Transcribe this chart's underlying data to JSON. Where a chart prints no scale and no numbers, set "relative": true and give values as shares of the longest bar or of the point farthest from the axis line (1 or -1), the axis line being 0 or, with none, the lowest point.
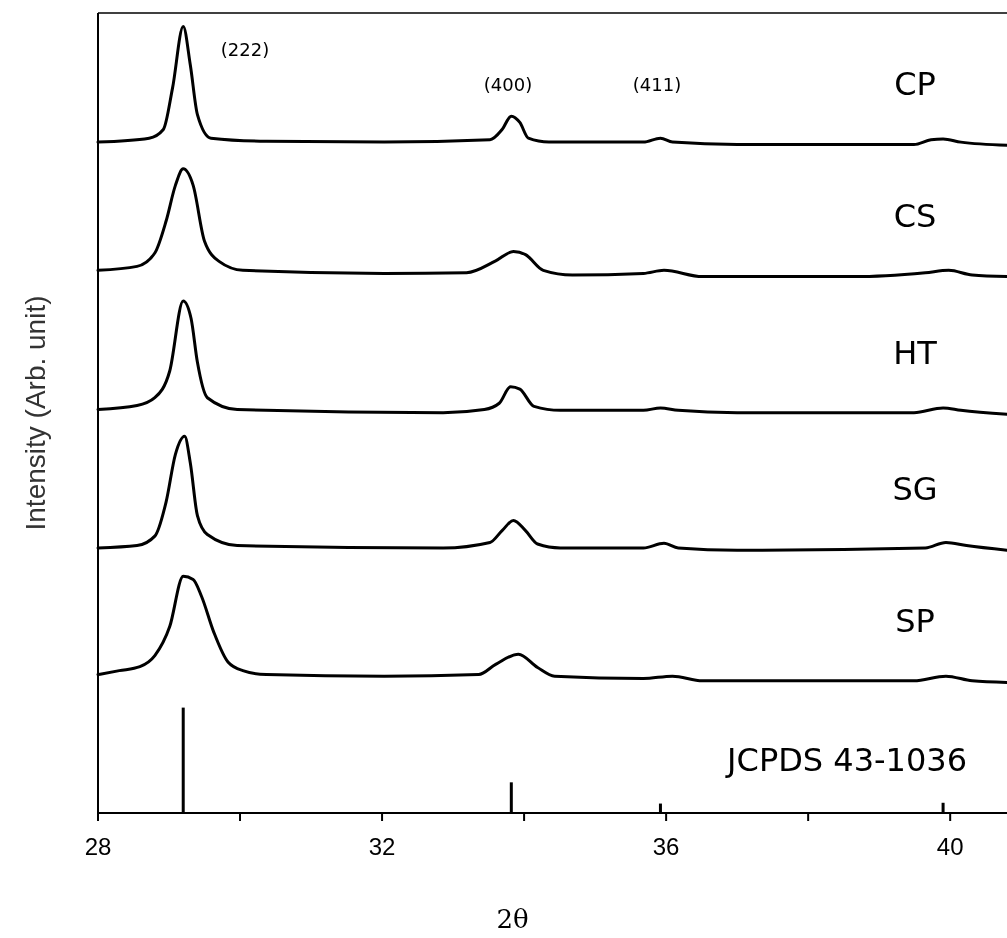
{
  "chart_data": {
    "type": "line",
    "relative": true,
    "xlabel": "2θ",
    "ylabel": "Intensity (Arb. unit)",
    "xlim": [
      28,
      40.8
    ],
    "xticks": [
      28,
      {
        "value": 30,
        "label": null
      },
      32,
      {
        "value": 34,
        "label": null
      },
      36,
      {
        "value": 38,
        "label": null
      },
      40
    ],
    "grid": false,
    "marker": "none",
    "line_style": "solid",
    "annotations": [
      "(222)",
      "(400)",
      "(411)"
    ],
    "series": [
      {
        "name": "CP",
        "color": "#000000",
        "x": [
          28.0,
          28.72,
          28.92,
          29.05,
          29.2,
          29.3,
          29.4,
          29.59,
          30.37,
          32.03,
          33.52,
          33.69,
          33.82,
          33.94,
          34.06,
          34.35,
          35.68,
          35.92,
          36.09,
          37.0,
          39.49,
          39.73,
          39.9,
          40.15,
          40.8
        ],
        "values": [
          0.853,
          0.858,
          0.869,
          0.922,
          1.0,
          0.951,
          0.888,
          0.858,
          0.854,
          0.853,
          0.856,
          0.869,
          0.886,
          0.878,
          0.858,
          0.853,
          0.853,
          0.858,
          0.853,
          0.85,
          0.85,
          0.856,
          0.857,
          0.853,
          0.849
        ]
      },
      {
        "name": "CS",
        "color": "#000000",
        "x": [
          28.0,
          28.55,
          28.8,
          28.96,
          29.09,
          29.2,
          29.34,
          29.5,
          29.71,
          30.04,
          32.03,
          33.19,
          33.6,
          33.85,
          34.02,
          34.27,
          34.68,
          35.68,
          35.97,
          36.51,
          38.66,
          39.65,
          39.98,
          40.31,
          40.8
        ],
        "values": [
          0.69,
          0.695,
          0.712,
          0.753,
          0.798,
          0.819,
          0.798,
          0.727,
          0.701,
          0.69,
          0.686,
          0.687,
          0.702,
          0.714,
          0.71,
          0.69,
          0.684,
          0.686,
          0.69,
          0.682,
          0.682,
          0.687,
          0.69,
          0.684,
          0.682
        ]
      },
      {
        "name": "HT",
        "color": "#000000",
        "x": [
          28.0,
          28.55,
          28.8,
          29.01,
          29.2,
          29.31,
          29.4,
          29.54,
          29.96,
          32.86,
          33.44,
          33.65,
          33.81,
          33.94,
          34.14,
          34.51,
          35.68,
          35.92,
          36.17,
          37.0,
          39.49,
          39.9,
          40.15,
          40.8
        ],
        "values": [
          0.513,
          0.518,
          0.528,
          0.562,
          0.651,
          0.629,
          0.573,
          0.528,
          0.513,
          0.509,
          0.513,
          0.521,
          0.542,
          0.539,
          0.517,
          0.512,
          0.512,
          0.515,
          0.512,
          0.509,
          0.509,
          0.515,
          0.512,
          0.507
        ]
      },
      {
        "name": "SG",
        "color": "#000000",
        "x": [
          28.0,
          28.55,
          28.8,
          28.96,
          29.09,
          29.22,
          29.3,
          29.4,
          29.54,
          29.96,
          32.86,
          33.52,
          33.69,
          33.85,
          34.02,
          34.19,
          34.51,
          35.68,
          35.97,
          36.17,
          37.0,
          39.65,
          39.94,
          40.23,
          40.8
        ],
        "values": [
          0.337,
          0.34,
          0.352,
          0.396,
          0.456,
          0.479,
          0.445,
          0.378,
          0.354,
          0.34,
          0.337,
          0.344,
          0.359,
          0.372,
          0.359,
          0.342,
          0.337,
          0.337,
          0.343,
          0.337,
          0.334,
          0.337,
          0.344,
          0.34,
          0.334
        ]
      },
      {
        "name": "SP",
        "color": "#000000",
        "x": [
          28.0,
          28.3,
          28.59,
          28.8,
          29.01,
          29.2,
          29.34,
          29.46,
          29.63,
          29.83,
          30.04,
          30.37,
          32.03,
          33.36,
          33.6,
          33.92,
          34.19,
          34.43,
          35.68,
          36.09,
          36.51,
          39.49,
          39.94,
          40.31,
          40.8
        ],
        "values": [
          0.176,
          0.181,
          0.186,
          0.2,
          0.237,
          0.301,
          0.297,
          0.275,
          0.23,
          0.192,
          0.181,
          0.176,
          0.174,
          0.176,
          0.189,
          0.202,
          0.185,
          0.174,
          0.171,
          0.174,
          0.168,
          0.168,
          0.174,
          0.168,
          0.166
        ]
      },
      {
        "name": "JCPDS 43-1036",
        "type": "bar",
        "color": "#000000",
        "x": [
          29.2,
          33.82,
          35.92,
          39.9
        ],
        "values": [
          0.134,
          0.039,
          0.012,
          0.013
        ]
      }
    ]
  }
}
